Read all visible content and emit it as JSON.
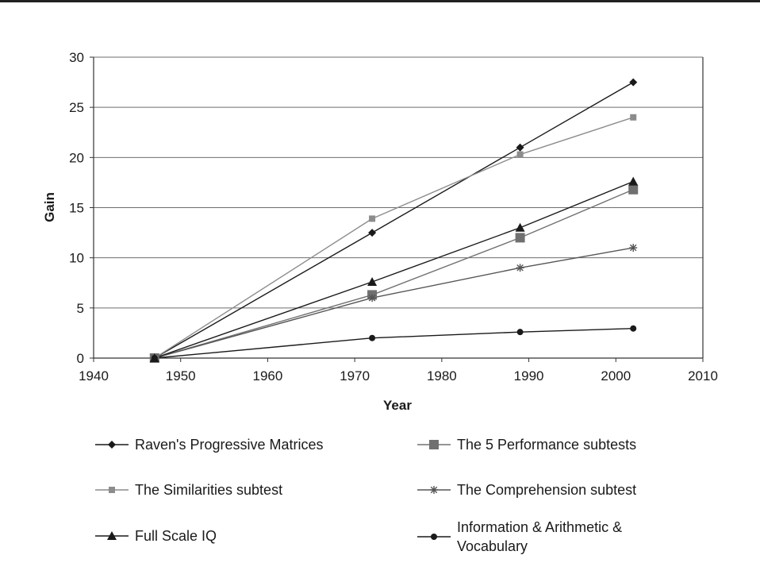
{
  "chart_data": {
    "type": "line",
    "xlabel": "Year",
    "ylabel": "Gain",
    "xlim": [
      1940,
      2010
    ],
    "ylim": [
      0,
      30
    ],
    "xticks": [
      1940,
      1950,
      1960,
      1970,
      1980,
      1990,
      2000,
      2010
    ],
    "yticks": [
      0,
      5,
      10,
      15,
      20,
      25,
      30
    ],
    "grid": "horizontal",
    "legend_position": "bottom",
    "series": [
      {
        "name": "Raven's Progressive Matrices",
        "marker": "diamond",
        "color": "#1a1a1a",
        "x": [
          1947,
          1972,
          1989,
          2002
        ],
        "y": [
          0,
          12.5,
          21.0,
          27.5
        ]
      },
      {
        "name": "The 5 Performance subtests",
        "marker": "square-large",
        "color": "#707070",
        "x": [
          1947,
          1972,
          1989,
          2002
        ],
        "y": [
          0,
          6.3,
          12.0,
          16.8
        ]
      },
      {
        "name": "The Similarities subtest",
        "marker": "square-small",
        "color": "#8c8c8c",
        "x": [
          1947,
          1972,
          1989,
          2002
        ],
        "y": [
          0,
          13.9,
          20.3,
          24.0
        ]
      },
      {
        "name": "The Comprehension subtest",
        "marker": "star",
        "color": "#555555",
        "x": [
          1947,
          1972,
          1989,
          2002
        ],
        "y": [
          0,
          6.0,
          9.0,
          11.0
        ]
      },
      {
        "name": "Full Scale IQ",
        "marker": "triangle",
        "color": "#1a1a1a",
        "x": [
          1947,
          1972,
          1989,
          2002
        ],
        "y": [
          0,
          7.6,
          13.0,
          17.6
        ]
      },
      {
        "name": "Information & Arithmetic & Vocabulary",
        "marker": "circle",
        "color": "#1a1a1a",
        "x": [
          1947,
          1972,
          1989,
          2002
        ],
        "y": [
          0,
          2.0,
          2.6,
          2.95
        ]
      }
    ]
  }
}
